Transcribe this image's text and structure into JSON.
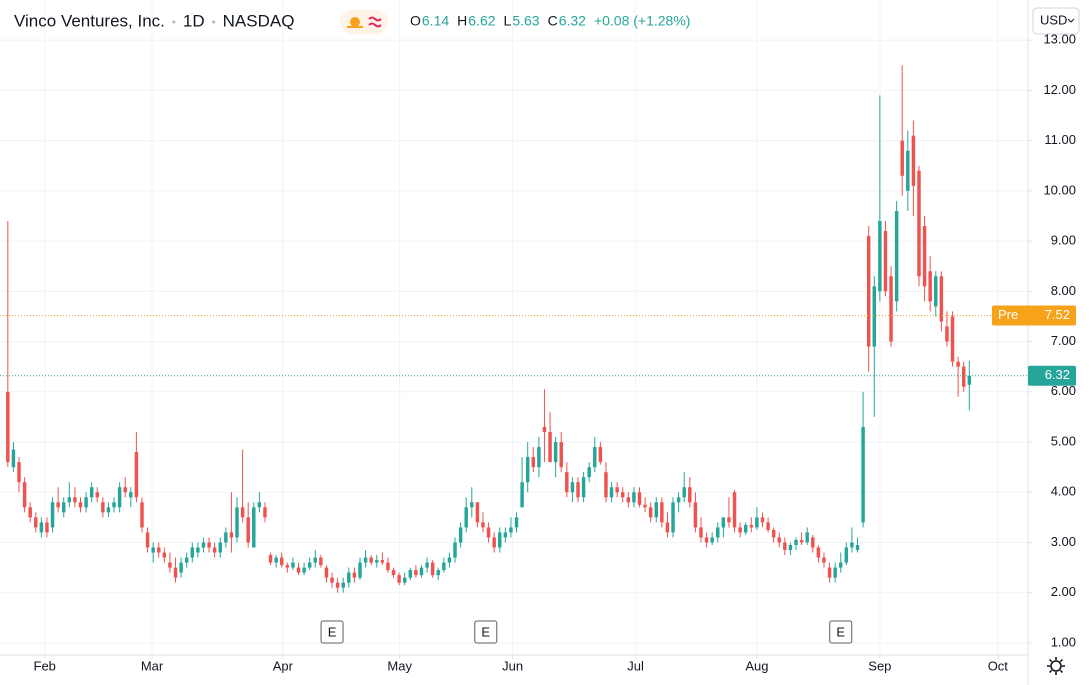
{
  "header": {
    "title_parts": [
      "Vinco Ventures, Inc.",
      "1D",
      "NASDAQ"
    ],
    "ohlc": [
      {
        "label": "O",
        "value": "6.14"
      },
      {
        "label": "H",
        "value": "6.62"
      },
      {
        "label": "L",
        "value": "5.63"
      },
      {
        "label": "C",
        "value": "6.32"
      }
    ],
    "change": "+0.08 (+1.28%)",
    "currency": "USD"
  },
  "chart_data": {
    "type": "candlestick",
    "up_color": "#26a69a",
    "down_color": "#ef5350",
    "grid": true,
    "xlim": [
      -1.4,
      182.5
    ],
    "ylim": [
      0.76,
      13.8
    ],
    "xticks": [
      {
        "value": 6.6,
        "label": "Feb"
      },
      {
        "value": 25.8,
        "label": "Mar"
      },
      {
        "value": 49.2,
        "label": "Apr"
      },
      {
        "value": 70.1,
        "label": "May"
      },
      {
        "value": 90.3,
        "label": "Jun"
      },
      {
        "value": 112.3,
        "label": "Jul"
      },
      {
        "value": 134,
        "label": "Aug"
      },
      {
        "value": 156,
        "label": "Sep"
      },
      {
        "value": 177.1,
        "label": "Oct"
      }
    ],
    "yticks": [
      {
        "value": 1,
        "label": "1.00"
      },
      {
        "value": 2,
        "label": "2.00"
      },
      {
        "value": 3,
        "label": "3.00"
      },
      {
        "value": 4,
        "label": "4.00"
      },
      {
        "value": 5,
        "label": "5.00"
      },
      {
        "value": 6,
        "label": "6.00"
      },
      {
        "value": 7,
        "label": "7.00"
      },
      {
        "value": 8,
        "label": "8.00"
      },
      {
        "value": 9,
        "label": "9.00"
      },
      {
        "value": 10,
        "label": "10.00"
      },
      {
        "value": 11,
        "label": "11.00"
      },
      {
        "value": 12,
        "label": "12.00"
      },
      {
        "value": 13,
        "label": "13.00"
      }
    ],
    "price_lines": [
      {
        "label": "Pre",
        "value": 7.52,
        "color": "#f7a21b"
      },
      {
        "value": 6.32,
        "color": "#26a69a"
      }
    ],
    "events": [
      {
        "x": 58,
        "label": "E"
      },
      {
        "x": 85.5,
        "label": "E"
      },
      {
        "x": 149,
        "label": "E"
      }
    ],
    "ohlc": [
      [
        6.0,
        9.4,
        4.5,
        4.6
      ],
      [
        4.5,
        5.0,
        4.4,
        4.85
      ],
      [
        4.6,
        4.7,
        4.0,
        4.2
      ],
      [
        4.2,
        4.3,
        3.6,
        3.7
      ],
      [
        3.7,
        3.8,
        3.4,
        3.5
      ],
      [
        3.5,
        3.6,
        3.2,
        3.3
      ],
      [
        3.2,
        3.5,
        3.1,
        3.4
      ],
      [
        3.4,
        3.5,
        3.1,
        3.2
      ],
      [
        3.3,
        3.9,
        3.2,
        3.8
      ],
      [
        3.8,
        4.1,
        3.6,
        3.7
      ],
      [
        3.6,
        3.9,
        3.5,
        3.8
      ],
      [
        3.8,
        4.2,
        3.7,
        3.9
      ],
      [
        3.9,
        4.1,
        3.7,
        3.8
      ],
      [
        3.8,
        3.9,
        3.6,
        3.7
      ],
      [
        3.7,
        4.0,
        3.6,
        3.9
      ],
      [
        3.9,
        4.2,
        3.8,
        4.1
      ],
      [
        4.0,
        4.1,
        3.8,
        3.9
      ],
      [
        3.8,
        3.9,
        3.5,
        3.6
      ],
      [
        3.6,
        3.8,
        3.5,
        3.7
      ],
      [
        3.7,
        3.9,
        3.6,
        3.8
      ],
      [
        3.7,
        4.2,
        3.6,
        4.1
      ],
      [
        4.1,
        4.3,
        3.9,
        4.0
      ],
      [
        3.9,
        4.1,
        3.7,
        4.0
      ],
      [
        4.8,
        5.2,
        3.8,
        3.9
      ],
      [
        3.8,
        3.9,
        3.2,
        3.3
      ],
      [
        3.2,
        3.3,
        2.8,
        2.9
      ],
      [
        2.8,
        3.0,
        2.6,
        2.9
      ],
      [
        2.9,
        3.0,
        2.7,
        2.8
      ],
      [
        2.8,
        2.9,
        2.6,
        2.7
      ],
      [
        2.6,
        2.8,
        2.4,
        2.5
      ],
      [
        2.5,
        2.7,
        2.2,
        2.3
      ],
      [
        2.4,
        2.7,
        2.3,
        2.6
      ],
      [
        2.6,
        2.8,
        2.5,
        2.7
      ],
      [
        2.7,
        3.0,
        2.6,
        2.9
      ],
      [
        2.8,
        3.0,
        2.7,
        2.9
      ],
      [
        2.9,
        3.1,
        2.8,
        3.0
      ],
      [
        3.0,
        3.1,
        2.8,
        2.9
      ],
      [
        2.9,
        3.0,
        2.7,
        2.8
      ],
      [
        2.8,
        3.1,
        2.7,
        3.0
      ],
      [
        3.0,
        3.3,
        2.9,
        3.2
      ],
      [
        3.2,
        4.0,
        2.8,
        3.1
      ],
      [
        3.1,
        3.9,
        3.0,
        3.7
      ],
      [
        3.7,
        4.85,
        3.4,
        3.5
      ],
      [
        3.5,
        3.8,
        2.9,
        3.0
      ],
      [
        2.9,
        3.8,
        2.9,
        3.7
      ],
      [
        3.7,
        4.0,
        3.6,
        3.8
      ],
      [
        3.7,
        3.8,
        3.4,
        3.5
      ],
      [
        2.75,
        2.8,
        2.55,
        2.6
      ],
      [
        2.6,
        2.75,
        2.5,
        2.7
      ],
      [
        2.7,
        2.8,
        2.5,
        2.55
      ],
      [
        2.55,
        2.6,
        2.4,
        2.5
      ],
      [
        2.5,
        2.7,
        2.45,
        2.6
      ],
      [
        2.5,
        2.6,
        2.35,
        2.4
      ],
      [
        2.4,
        2.6,
        2.35,
        2.5
      ],
      [
        2.5,
        2.7,
        2.45,
        2.6
      ],
      [
        2.6,
        2.85,
        2.5,
        2.7
      ],
      [
        2.7,
        2.75,
        2.5,
        2.55
      ],
      [
        2.5,
        2.55,
        2.2,
        2.3
      ],
      [
        2.3,
        2.4,
        2.1,
        2.2
      ],
      [
        2.2,
        2.3,
        2.0,
        2.1
      ],
      [
        2.1,
        2.3,
        2.0,
        2.2
      ],
      [
        2.2,
        2.5,
        2.1,
        2.4
      ],
      [
        2.4,
        2.5,
        2.2,
        2.3
      ],
      [
        2.3,
        2.7,
        2.25,
        2.6
      ],
      [
        2.6,
        2.85,
        2.5,
        2.7
      ],
      [
        2.7,
        2.75,
        2.55,
        2.6
      ],
      [
        2.6,
        2.75,
        2.5,
        2.65
      ],
      [
        2.65,
        2.8,
        2.55,
        2.6
      ],
      [
        2.6,
        2.7,
        2.4,
        2.45
      ],
      [
        2.45,
        2.5,
        2.3,
        2.35
      ],
      [
        2.35,
        2.4,
        2.15,
        2.2
      ],
      [
        2.2,
        2.4,
        2.15,
        2.3
      ],
      [
        2.3,
        2.5,
        2.25,
        2.45
      ],
      [
        2.45,
        2.55,
        2.3,
        2.35
      ],
      [
        2.35,
        2.55,
        2.3,
        2.5
      ],
      [
        2.5,
        2.7,
        2.4,
        2.6
      ],
      [
        2.6,
        2.65,
        2.3,
        2.35
      ],
      [
        2.35,
        2.5,
        2.25,
        2.45
      ],
      [
        2.45,
        2.7,
        2.4,
        2.6
      ],
      [
        2.6,
        2.8,
        2.5,
        2.7
      ],
      [
        2.7,
        3.1,
        2.6,
        3.0
      ],
      [
        3.0,
        3.4,
        2.9,
        3.3
      ],
      [
        3.3,
        3.9,
        3.2,
        3.7
      ],
      [
        3.7,
        4.1,
        3.5,
        3.8
      ],
      [
        3.8,
        3.8,
        3.3,
        3.4
      ],
      [
        3.4,
        3.6,
        3.2,
        3.3
      ],
      [
        3.3,
        3.4,
        3.0,
        3.1
      ],
      [
        3.1,
        3.2,
        2.8,
        2.9
      ],
      [
        2.9,
        3.3,
        2.8,
        3.2
      ],
      [
        3.1,
        3.3,
        3.0,
        3.2
      ],
      [
        3.2,
        3.5,
        3.1,
        3.3
      ],
      [
        3.3,
        3.6,
        3.2,
        3.5
      ],
      [
        3.7,
        4.7,
        3.7,
        4.2
      ],
      [
        4.2,
        5.0,
        4.0,
        4.7
      ],
      [
        4.7,
        4.9,
        4.4,
        4.5
      ],
      [
        4.5,
        5.1,
        4.3,
        4.9
      ],
      [
        5.3,
        6.05,
        4.6,
        5.2
      ],
      [
        5.2,
        5.6,
        4.6,
        4.6
      ],
      [
        4.6,
        5.1,
        4.3,
        5.0
      ],
      [
        5.0,
        5.2,
        4.4,
        4.5
      ],
      [
        4.4,
        4.6,
        3.9,
        4.0
      ],
      [
        4.0,
        4.3,
        3.8,
        4.2
      ],
      [
        4.2,
        4.3,
        3.8,
        3.9
      ],
      [
        3.9,
        4.4,
        3.8,
        4.3
      ],
      [
        4.3,
        4.6,
        4.2,
        4.5
      ],
      [
        4.5,
        5.1,
        4.4,
        4.9
      ],
      [
        4.9,
        5.0,
        4.55,
        4.6
      ],
      [
        4.4,
        4.6,
        3.8,
        3.9
      ],
      [
        3.9,
        4.2,
        3.8,
        4.1
      ],
      [
        4.1,
        4.2,
        3.9,
        4.0
      ],
      [
        4.0,
        4.1,
        3.8,
        3.9
      ],
      [
        3.9,
        4.0,
        3.7,
        3.8
      ],
      [
        3.8,
        4.1,
        3.7,
        4.0
      ],
      [
        4.0,
        4.1,
        3.7,
        3.75
      ],
      [
        3.75,
        3.9,
        3.6,
        3.7
      ],
      [
        3.7,
        3.8,
        3.4,
        3.5
      ],
      [
        3.5,
        3.9,
        3.4,
        3.8
      ],
      [
        3.8,
        3.9,
        3.3,
        3.4
      ],
      [
        3.4,
        3.6,
        3.1,
        3.2
      ],
      [
        3.2,
        3.9,
        3.1,
        3.8
      ],
      [
        3.8,
        4.0,
        3.6,
        3.9
      ],
      [
        3.9,
        4.4,
        3.8,
        4.1
      ],
      [
        4.1,
        4.3,
        3.7,
        3.8
      ],
      [
        3.8,
        4.0,
        3.2,
        3.3
      ],
      [
        3.3,
        3.5,
        3.0,
        3.1
      ],
      [
        3.1,
        3.2,
        2.9,
        3.0
      ],
      [
        3.0,
        3.2,
        2.95,
        3.1
      ],
      [
        3.1,
        3.4,
        3.0,
        3.3
      ],
      [
        3.3,
        3.5,
        3.1,
        3.5
      ],
      [
        3.5,
        3.9,
        3.3,
        3.4
      ],
      [
        4.0,
        4.05,
        3.2,
        3.3
      ],
      [
        3.3,
        3.4,
        3.1,
        3.2
      ],
      [
        3.2,
        3.4,
        3.15,
        3.35
      ],
      [
        3.35,
        3.5,
        3.2,
        3.3
      ],
      [
        3.3,
        3.7,
        3.25,
        3.5
      ],
      [
        3.5,
        3.6,
        3.3,
        3.4
      ],
      [
        3.4,
        3.5,
        3.2,
        3.25
      ],
      [
        3.25,
        3.3,
        3.0,
        3.1
      ],
      [
        3.1,
        3.2,
        2.9,
        3.0
      ],
      [
        3.0,
        3.1,
        2.75,
        2.85
      ],
      [
        2.85,
        3.0,
        2.75,
        2.95
      ],
      [
        2.95,
        3.1,
        2.85,
        3.05
      ],
      [
        3.05,
        3.2,
        2.95,
        3.0
      ],
      [
        3.0,
        3.3,
        2.95,
        3.2
      ],
      [
        3.1,
        3.15,
        2.8,
        2.9
      ],
      [
        2.9,
        2.95,
        2.6,
        2.7
      ],
      [
        2.7,
        2.8,
        2.5,
        2.6
      ],
      [
        2.5,
        2.6,
        2.2,
        2.3
      ],
      [
        2.3,
        2.6,
        2.2,
        2.5
      ],
      [
        2.5,
        2.8,
        2.4,
        2.6
      ],
      [
        2.6,
        3.0,
        2.55,
        2.9
      ],
      [
        2.9,
        3.3,
        2.8,
        3.0
      ],
      [
        2.85,
        3.1,
        2.8,
        2.95
      ],
      [
        3.4,
        6.0,
        3.3,
        5.3
      ],
      [
        9.1,
        9.3,
        6.4,
        6.9
      ],
      [
        6.9,
        8.3,
        5.5,
        8.1
      ],
      [
        8.0,
        11.9,
        7.8,
        9.4
      ],
      [
        9.2,
        9.4,
        7.9,
        8.0
      ],
      [
        8.3,
        8.5,
        6.9,
        7.0
      ],
      [
        7.8,
        9.8,
        7.6,
        9.6
      ],
      [
        11.0,
        12.5,
        9.9,
        10.3
      ],
      [
        10.0,
        11.2,
        9.6,
        10.8
      ],
      [
        11.1,
        11.4,
        9.5,
        10.1
      ],
      [
        10.4,
        10.5,
        8.1,
        8.3
      ],
      [
        9.3,
        9.5,
        7.8,
        8.1
      ],
      [
        8.4,
        8.7,
        7.6,
        7.8
      ],
      [
        7.7,
        8.4,
        7.5,
        8.3
      ],
      [
        8.3,
        8.4,
        7.2,
        7.4
      ],
      [
        7.3,
        7.6,
        6.9,
        7.0
      ],
      [
        7.5,
        7.6,
        6.5,
        6.6
      ],
      [
        6.6,
        6.7,
        5.9,
        6.5
      ],
      [
        6.5,
        6.6,
        6.0,
        6.1
      ],
      [
        6.14,
        6.62,
        5.63,
        6.32
      ]
    ]
  }
}
